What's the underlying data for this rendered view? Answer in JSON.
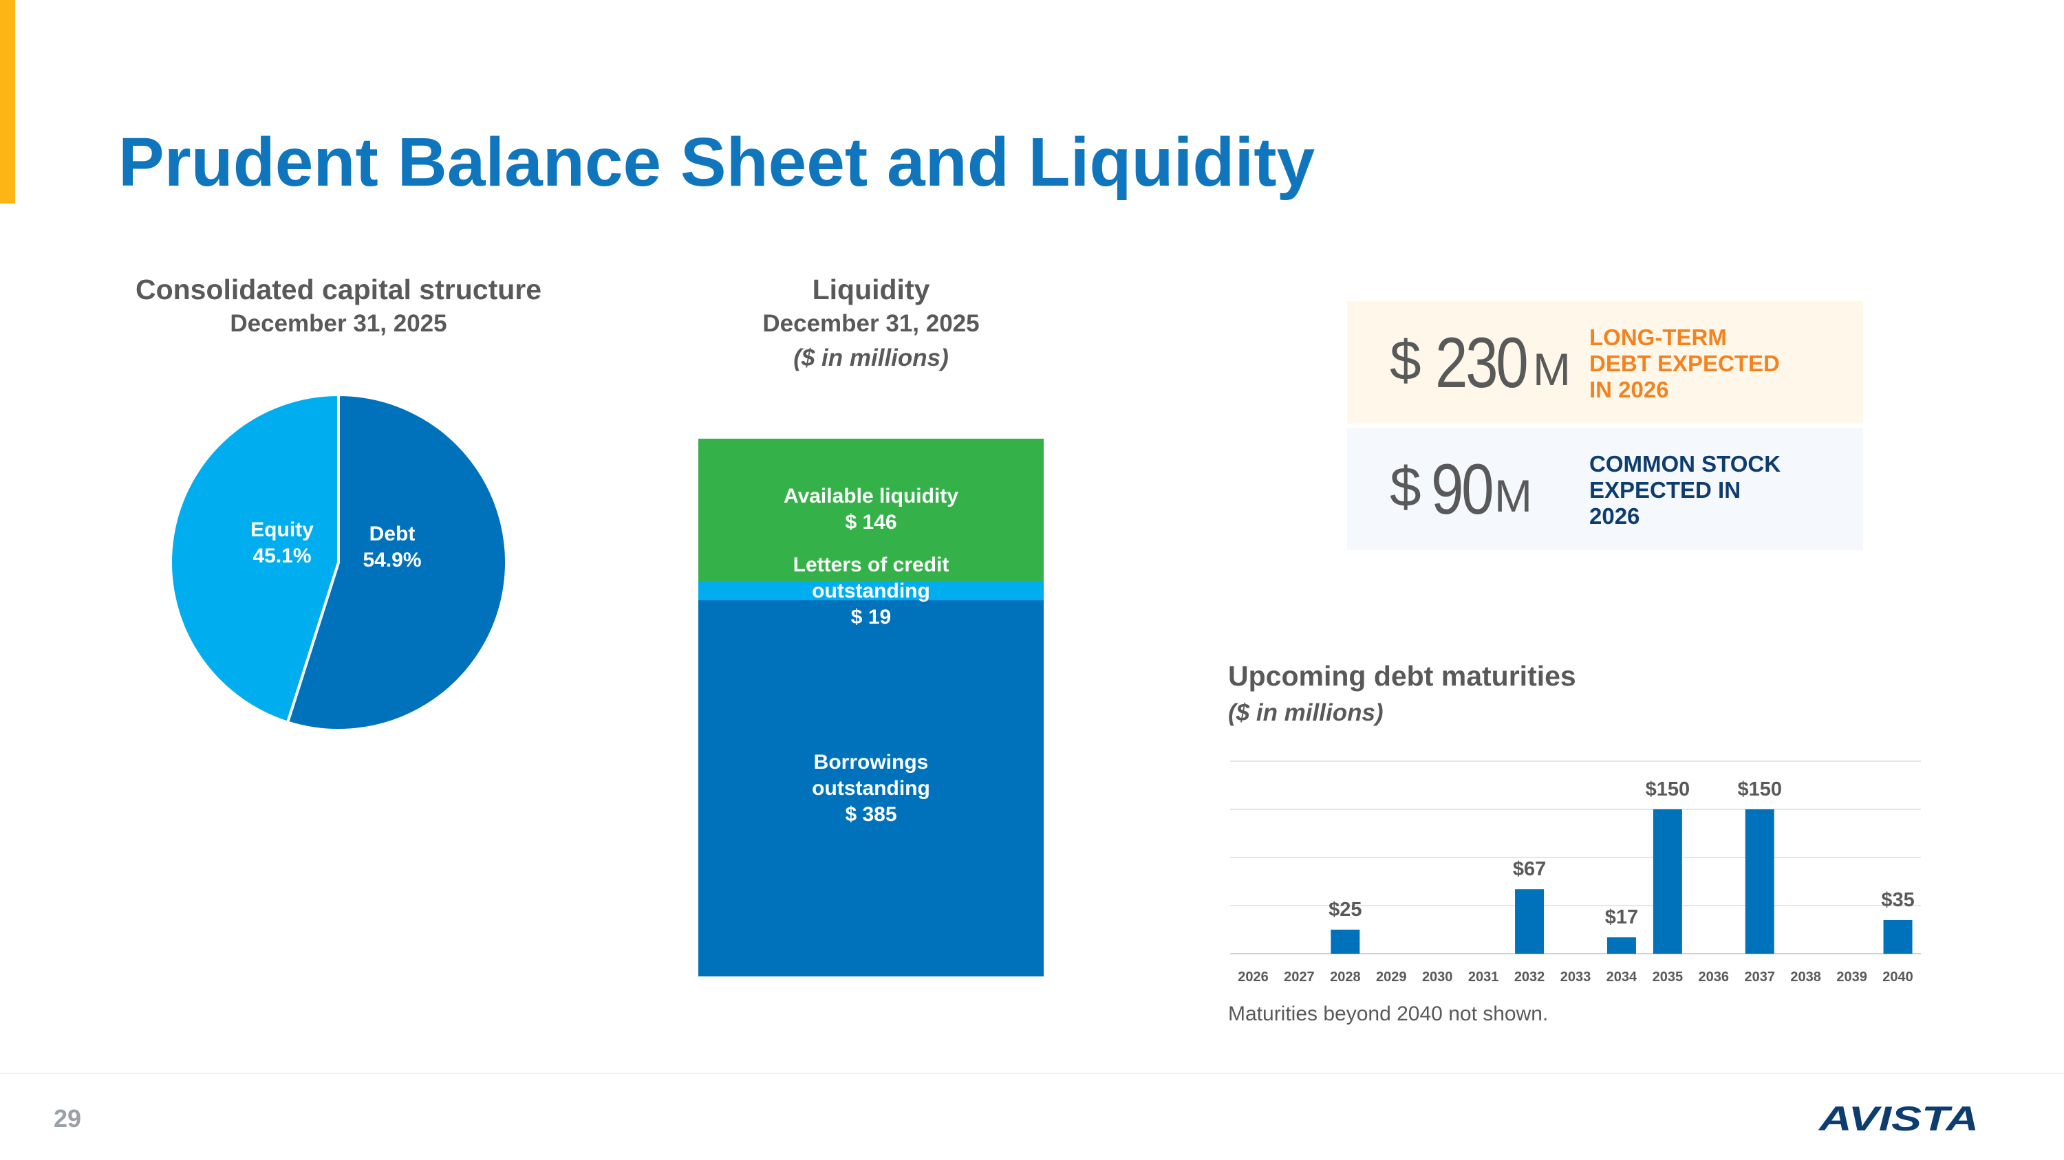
{
  "title": "Prudent Balance Sheet and Liquidity",
  "page_number": "29",
  "logo_text": "AVISTA",
  "colors": {
    "accent": "#fdb515",
    "title_blue": "#0f75bc",
    "dark_blue": "#0072bc",
    "light_blue": "#00aeef",
    "green": "#34b249",
    "orange": "#f58220",
    "navy": "#0d3c6e",
    "gray_text": "#595959"
  },
  "capital_structure": {
    "title": "Consolidated capital structure",
    "date": "December 31, 2025",
    "chart_data": {
      "type": "pie",
      "title": "Consolidated capital structure",
      "slices": [
        {
          "name": "Debt",
          "value": 54.9,
          "label": "54.9%",
          "color": "#0072bc"
        },
        {
          "name": "Equity",
          "value": 45.1,
          "label": "45.1%",
          "color": "#00aeef"
        }
      ]
    }
  },
  "liquidity": {
    "title": "Liquidity",
    "date": "December 31, 2025",
    "units": "($ in millions)",
    "chart_data": {
      "type": "bar",
      "stacked": true,
      "segments": [
        {
          "name": "Borrowings outstanding",
          "value": 385,
          "label_line1": "Borrowings",
          "label_line2": "outstanding",
          "value_label": "$ 385",
          "color": "#0072bc"
        },
        {
          "name": "Letters of credit outstanding",
          "value": 19,
          "label_line1": "Letters of credit",
          "label_line2": "outstanding",
          "value_label": "$ 19",
          "color": "#00aeef"
        },
        {
          "name": "Available liquidity",
          "value": 146,
          "label_line1": "Available liquidity",
          "value_label": "$ 146",
          "color": "#34b249"
        }
      ]
    }
  },
  "kpis": [
    {
      "dollar": "$",
      "number": "230",
      "unit": "M",
      "text": "LONG-TERM\nDEBT EXPECTED\nIN 2026",
      "bg": "#fff8ea",
      "text_color": "#f58220"
    },
    {
      "dollar": "$",
      "number": "90",
      "unit": "M",
      "text": "COMMON STOCK\nEXPECTED IN\n2026",
      "bg": "#f5f8fc",
      "text_color": "#0d3c6e"
    }
  ],
  "debt_maturities": {
    "title": "Upcoming debt maturities",
    "units": "($ in millions)",
    "footnote": "Maturities beyond 2040 not shown.",
    "chart_data": {
      "type": "bar",
      "categories": [
        "2026",
        "2027",
        "2028",
        "2029",
        "2030",
        "2031",
        "2032",
        "2033",
        "2034",
        "2035",
        "2036",
        "2037",
        "2038",
        "2039",
        "2040"
      ],
      "values": [
        0,
        0,
        25,
        0,
        0,
        0,
        67,
        0,
        17,
        150,
        0,
        150,
        0,
        0,
        35
      ],
      "data_labels": [
        "",
        "",
        "$25",
        "",
        "",
        "",
        "$67",
        "",
        "$17",
        "$150",
        "",
        "$150",
        "",
        "",
        "$35"
      ],
      "ylim": [
        0,
        200
      ],
      "grid": true,
      "color": "#0072bc"
    }
  }
}
